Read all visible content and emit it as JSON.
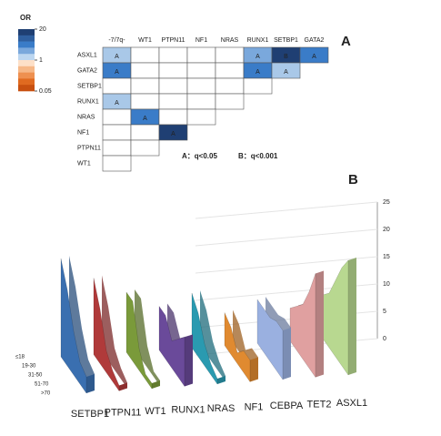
{
  "chart_data": [
    {
      "type": "heatmap",
      "panel": "A",
      "legend": {
        "title": "OR",
        "colors": [
          "#1f3f73",
          "#2f5f9f",
          "#3a7cc8",
          "#7aa8dc",
          "#bcd6f0",
          "#fde0c8",
          "#f6b888",
          "#ee9050",
          "#e06a20",
          "#c85010"
        ],
        "ticks": [
          20,
          1,
          0.05
        ],
        "log": true
      },
      "columns": [
        "-7/7q-",
        "WT1",
        "PTPN11",
        "NF1",
        "NRAS",
        "RUNX1",
        "SETBP1",
        "GATA2"
      ],
      "rows": [
        {
          "label": "ASXL1",
          "cells": [
            {
              "label": "A",
              "color": "#a9c8e8"
            },
            null,
            null,
            null,
            null,
            {
              "label": "A",
              "color": "#7aa8dc"
            },
            {
              "label": "B",
              "color": "#1f3f73"
            },
            {
              "label": "A",
              "color": "#3a7cc8"
            }
          ]
        },
        {
          "label": "GATA2",
          "cells": [
            {
              "label": "A",
              "color": "#3a7cc8"
            },
            null,
            null,
            null,
            null,
            {
              "label": "A",
              "color": "#3a7cc8"
            },
            {
              "label": "A",
              "color": "#a9c8e8"
            }
          ]
        },
        {
          "label": "SETBP1",
          "cells": [
            null,
            null,
            null,
            null,
            null,
            null
          ]
        },
        {
          "label": "RUNX1",
          "cells": [
            {
              "label": "A",
              "color": "#a9c8e8"
            },
            null,
            null,
            null,
            null
          ]
        },
        {
          "label": "NRAS",
          "cells": [
            null,
            {
              "label": "A",
              "color": "#3a7cc8"
            },
            null,
            null
          ]
        },
        {
          "label": "NF1",
          "cells": [
            null,
            null,
            {
              "label": "A",
              "color": "#1f3f73"
            }
          ]
        },
        {
          "label": "PTPN11",
          "cells": [
            null,
            null
          ]
        },
        {
          "label": "WT1",
          "cells": [
            null
          ]
        }
      ],
      "annotations": [
        "A：q<0.05",
        "B：q<0.001"
      ]
    },
    {
      "type": "ribbon3d",
      "panel": "B",
      "depth_categories": [
        "≤18",
        "19-30",
        "31-50",
        "51-70",
        ">70"
      ],
      "series": [
        {
          "name": "SETBP1",
          "color": "#3a6fb0",
          "values": [
            18,
            14,
            8,
            4,
            3
          ]
        },
        {
          "name": "PTPN11",
          "color": "#b03a3a",
          "values": [
            14,
            10,
            4,
            2,
            1
          ]
        },
        {
          "name": "WT1",
          "color": "#7a9a3a",
          "values": [
            11,
            11,
            4,
            1,
            1
          ]
        },
        {
          "name": "RUNX1",
          "color": "#6a4a9a",
          "values": [
            8,
            8,
            5,
            7,
            9
          ]
        },
        {
          "name": "NRAS",
          "color": "#2a9ab0",
          "values": [
            10,
            8,
            4,
            2,
            1
          ]
        },
        {
          "name": "NF1",
          "color": "#e08a30",
          "values": [
            6,
            5,
            2,
            4,
            4
          ]
        },
        {
          "name": "CEBPA",
          "color": "#9ab0e0",
          "values": [
            8,
            8,
            8,
            9,
            9
          ]
        },
        {
          "name": "TET2",
          "color": "#e0a0a0",
          "values": [
            6,
            8,
            10,
            14,
            19
          ]
        },
        {
          "name": "ASXL1",
          "color": "#b8d890",
          "values": [
            8,
            10,
            14,
            18,
            21
          ]
        }
      ],
      "zlim": [
        0,
        25
      ],
      "zticks": [
        0,
        5,
        10,
        15,
        20,
        25
      ]
    }
  ]
}
